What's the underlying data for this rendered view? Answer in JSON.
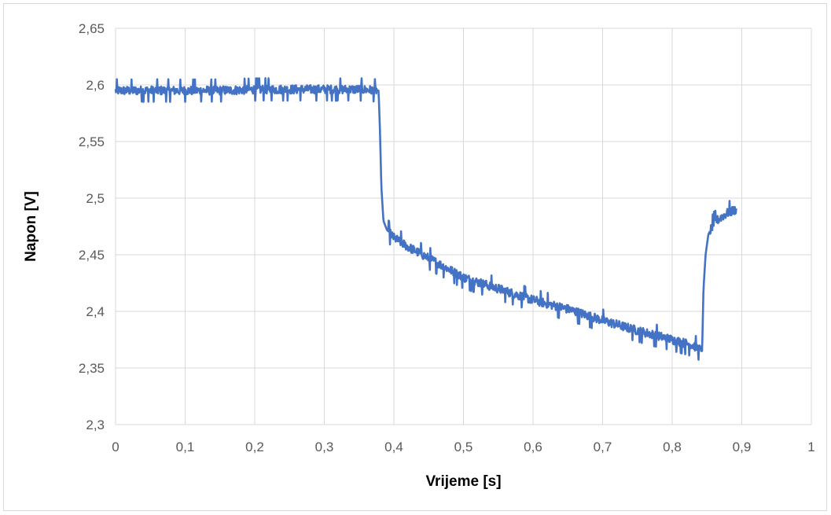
{
  "chart_data": {
    "type": "line",
    "xlabel": "Vrijeme [s]",
    "ylabel": "Napon [V]",
    "xlim": [
      0,
      1
    ],
    "ylim": [
      2.3,
      2.65
    ],
    "x_ticks": [
      0,
      0.1,
      0.2,
      0.3,
      0.4,
      0.5,
      0.6,
      0.7,
      0.8,
      0.9,
      1
    ],
    "x_tick_labels": [
      "0",
      "0,1",
      "0,2",
      "0,3",
      "0,4",
      "0,5",
      "0,6",
      "0,7",
      "0,8",
      "0,9",
      "1"
    ],
    "y_ticks": [
      2.3,
      2.35,
      2.4,
      2.45,
      2.5,
      2.55,
      2.6,
      2.65
    ],
    "y_tick_labels": [
      "2,3",
      "2,35",
      "2,4",
      "2,45",
      "2,5",
      "2,55",
      "2,6",
      "2,65"
    ],
    "grid": true,
    "legend": "none",
    "line_color": "#4472C4",
    "series": [
      {
        "x": [
          0,
          0.05,
          0.1,
          0.15,
          0.2,
          0.25,
          0.3,
          0.35,
          0.378,
          0.38,
          0.382,
          0.385,
          0.39,
          0.4,
          0.42,
          0.45,
          0.5,
          0.55,
          0.6,
          0.65,
          0.7,
          0.75,
          0.8,
          0.83,
          0.843,
          0.845,
          0.848,
          0.852,
          0.86,
          0.87,
          0.88,
          0.892
        ],
        "y": [
          2.595,
          2.595,
          2.595,
          2.595,
          2.596,
          2.596,
          2.596,
          2.596,
          2.595,
          2.56,
          2.51,
          2.48,
          2.472,
          2.465,
          2.457,
          2.447,
          2.43,
          2.42,
          2.41,
          2.402,
          2.392,
          2.383,
          2.375,
          2.37,
          2.365,
          2.42,
          2.45,
          2.468,
          2.478,
          2.483,
          2.487,
          2.49
        ]
      }
    ]
  }
}
